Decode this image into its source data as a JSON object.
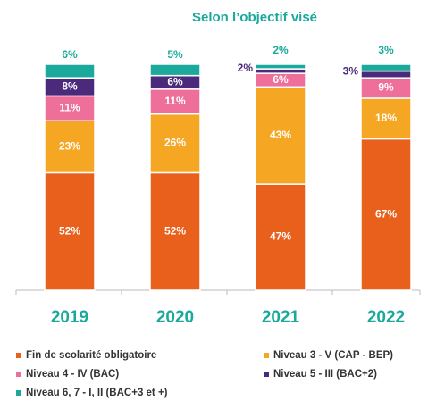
{
  "chart_data": {
    "type": "stacked_bar",
    "title": "Selon l’objectif visé",
    "categories": [
      "2019",
      "2020",
      "2021",
      "2022"
    ],
    "ylim": [
      0,
      100
    ],
    "series": [
      {
        "name": "Fin de scolarité obligatoire",
        "color": "#e8601c",
        "values": [
          52,
          52,
          47,
          67
        ],
        "value_labels": [
          "52%",
          "52%",
          "47%",
          "67%"
        ]
      },
      {
        "name": "Niveau 3 - V (CAP - BEP)",
        "color": "#f5a623",
        "values": [
          23,
          26,
          43,
          18
        ],
        "value_labels": [
          "23%",
          "26%",
          "43%",
          "18%"
        ]
      },
      {
        "name": "Niveau 4 - IV (BAC)",
        "color": "#ee6f9a",
        "values": [
          11,
          11,
          6,
          9
        ],
        "value_labels": [
          "11%",
          "11%",
          "6%",
          "9%"
        ]
      },
      {
        "name": "Niveau 5 - III (BAC+2)",
        "color": "#4b2a7b",
        "values": [
          8,
          6,
          2,
          3
        ],
        "value_labels": [
          "8%",
          "6%",
          "2%",
          "3%"
        ]
      },
      {
        "name": "Niveau 6, 7 - I, II (BAC+3 et +)",
        "color": "#1aa99b",
        "values": [
          6,
          5,
          2,
          3
        ],
        "value_labels": [
          "6%",
          "5%",
          "2%",
          "3%"
        ]
      }
    ]
  }
}
